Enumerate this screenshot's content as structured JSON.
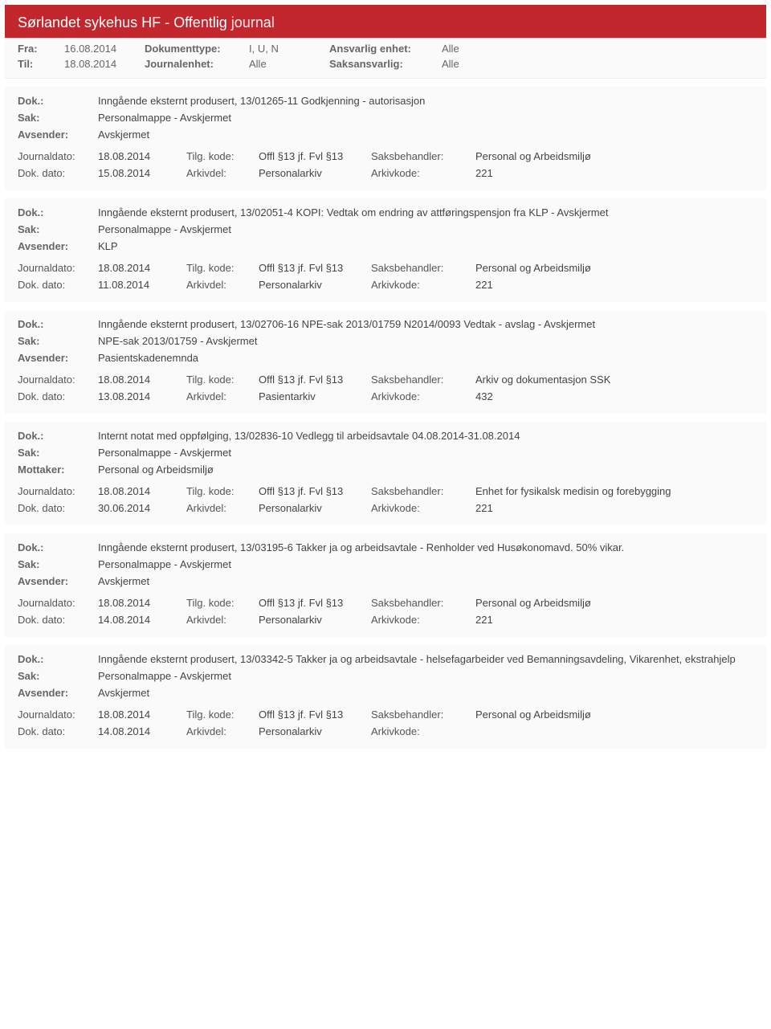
{
  "header": {
    "title": "Sørlandet sykehus HF - Offentlig journal"
  },
  "meta": {
    "fra_label": "Fra:",
    "fra_value": "16.08.2014",
    "til_label": "Til:",
    "til_value": "18.08.2014",
    "doktype_label": "Dokumenttype:",
    "doktype_value": "I, U, N",
    "journalenhet_label": "Journalenhet:",
    "journalenhet_value": "Alle",
    "ansvarlig_label": "Ansvarlig enhet:",
    "ansvarlig_value": "Alle",
    "saksansvarlig_label": "Saksansvarlig:",
    "saksansvarlig_value": "Alle"
  },
  "labels": {
    "dok": "Dok.:",
    "sak": "Sak:",
    "avsender": "Avsender:",
    "mottaker": "Mottaker:",
    "journaldato": "Journaldato:",
    "tilgkode": "Tilg. kode:",
    "saksbeh": "Saksbehandler:",
    "dokdato": "Dok. dato:",
    "arkivdel": "Arkivdel:",
    "arkivkode": "Arkivkode:"
  },
  "entries": [
    {
      "dok": "Inngående eksternt produsert, 13/01265-11 Godkjenning - autorisasjon",
      "sak": "Personalmappe - Avskjermet",
      "party_label": "Avsender:",
      "party": "Avskjermet",
      "journaldato": "18.08.2014",
      "tilgkode": "Offl §13 jf. Fvl §13",
      "saksbeh": "Personal og Arbeidsmiljø",
      "dokdato": "15.08.2014",
      "arkivdel": "Personalarkiv",
      "arkivkode": "221"
    },
    {
      "dok": "Inngående eksternt produsert, 13/02051-4 KOPI: Vedtak om endring av attføringspensjon fra KLP - Avskjermet",
      "sak": "Personalmappe - Avskjermet",
      "party_label": "Avsender:",
      "party": "KLP",
      "journaldato": "18.08.2014",
      "tilgkode": "Offl §13 jf. Fvl §13",
      "saksbeh": "Personal og Arbeidsmiljø",
      "dokdato": "11.08.2014",
      "arkivdel": "Personalarkiv",
      "arkivkode": "221"
    },
    {
      "dok": "Inngående eksternt produsert, 13/02706-16 NPE-sak 2013/01759 N2014/0093 Vedtak - avslag - Avskjermet",
      "sak": "NPE-sak 2013/01759 - Avskjermet",
      "party_label": "Avsender:",
      "party": "Pasientskadenemnda",
      "journaldato": "18.08.2014",
      "tilgkode": "Offl §13 jf. Fvl §13",
      "saksbeh": "Arkiv og dokumentasjon SSK",
      "dokdato": "13.08.2014",
      "arkivdel": "Pasientarkiv",
      "arkivkode": "432"
    },
    {
      "dok": "Internt notat med oppfølging, 13/02836-10 Vedlegg til arbeidsavtale 04.08.2014-31.08.2014",
      "sak": "Personalmappe - Avskjermet",
      "party_label": "Mottaker:",
      "party": "Personal og Arbeidsmiljø",
      "journaldato": "18.08.2014",
      "tilgkode": "Offl §13 jf. Fvl §13",
      "saksbeh": "Enhet for fysikalsk medisin og forebygging",
      "dokdato": "30.06.2014",
      "arkivdel": "Personalarkiv",
      "arkivkode": "221"
    },
    {
      "dok": "Inngående eksternt produsert, 13/03195-6 Takker ja og arbeidsavtale - Renholder ved Husøkonomavd. 50% vikar.",
      "sak": "Personalmappe - Avskjermet",
      "party_label": "Avsender:",
      "party": "Avskjermet",
      "journaldato": "18.08.2014",
      "tilgkode": "Offl §13 jf. Fvl §13",
      "saksbeh": "Personal og Arbeidsmiljø",
      "dokdato": "14.08.2014",
      "arkivdel": "Personalarkiv",
      "arkivkode": "221"
    },
    {
      "dok": "Inngående eksternt produsert, 13/03342-5 Takker ja og arbeidsavtale - helsefagarbeider ved Bemanningsavdeling, Vikarenhet, ekstrahjelp",
      "sak": "Personalmappe - Avskjermet",
      "party_label": "Avsender:",
      "party": "Avskjermet",
      "journaldato": "18.08.2014",
      "tilgkode": "Offl §13 jf. Fvl §13",
      "saksbeh": "Personal og Arbeidsmiljø",
      "dokdato": "14.08.2014",
      "arkivdel": "Personalarkiv",
      "arkivkode": ""
    }
  ]
}
